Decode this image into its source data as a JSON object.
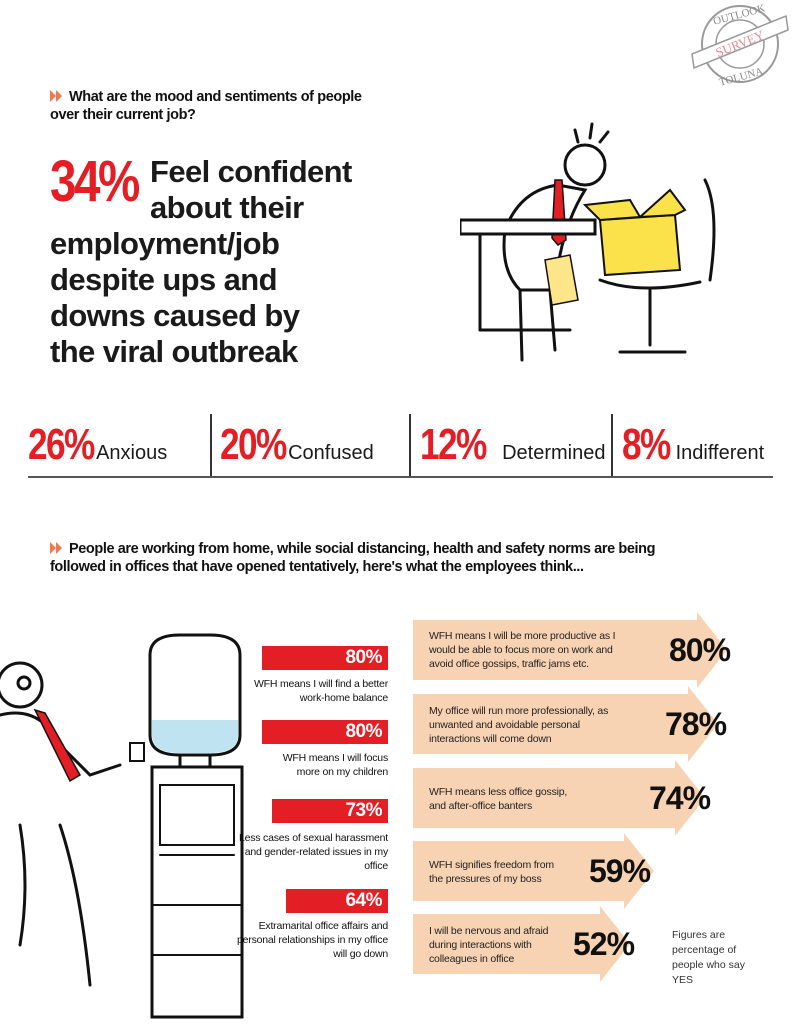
{
  "stamp": {
    "top": "OUTLOOK",
    "middle": "SURVEY",
    "bottom": "TOLUNA"
  },
  "section1": {
    "question": "What are the mood and sentiments of people over their current job?",
    "headline_pct": "34%",
    "headline_lines": [
      "Feel confident",
      "about their",
      "employment/job",
      "despite ups and",
      "downs caused by",
      "the viral outbreak"
    ],
    "stats": [
      {
        "pct": "26%",
        "label": "Anxious"
      },
      {
        "pct": "20%",
        "label": "Confused"
      },
      {
        "pct": "12%",
        "label": "Determined"
      },
      {
        "pct": "8%",
        "label": "Indifferent"
      }
    ]
  },
  "section2": {
    "question": "People are working from home, while social distancing, health and safety norms are being followed in offices that have opened tentatively, here's what the employees think...",
    "left_items": [
      {
        "pct": "80%",
        "value": 80,
        "label": "WFH means I will find a better work-home balance"
      },
      {
        "pct": "80%",
        "value": 80,
        "label": "WFH means I will focus more on my children"
      },
      {
        "pct": "73%",
        "value": 73,
        "label": "Less cases of sexual harassment and gender-related issues in my office"
      },
      {
        "pct": "64%",
        "value": 64,
        "label": "Extramarital office affairs and personal relationships in my office will go down"
      }
    ],
    "right_items": [
      {
        "pct": "80%",
        "value": 80,
        "label": "WFH means I will be more productive as I would be able to focus more on work and avoid office gossips, traffic jams etc."
      },
      {
        "pct": "78%",
        "value": 78,
        "label": "My office will run more professionally, as unwanted and avoidable personal interactions will come down"
      },
      {
        "pct": "74%",
        "value": 74,
        "label": "WFH means less office gossip, and after-office banters"
      },
      {
        "pct": "59%",
        "value": 59,
        "label": "WFH signifies freedom from the pressures of my boss"
      },
      {
        "pct": "52%",
        "value": 52,
        "label": "I will be nervous and afraid during interactions with colleagues in office"
      }
    ],
    "footnote": "Figures are percentage of people who say YES"
  },
  "colors": {
    "accent_red": "#e31e24",
    "arrow_fill": "#f8d3b3",
    "bullet": "#f07850"
  }
}
